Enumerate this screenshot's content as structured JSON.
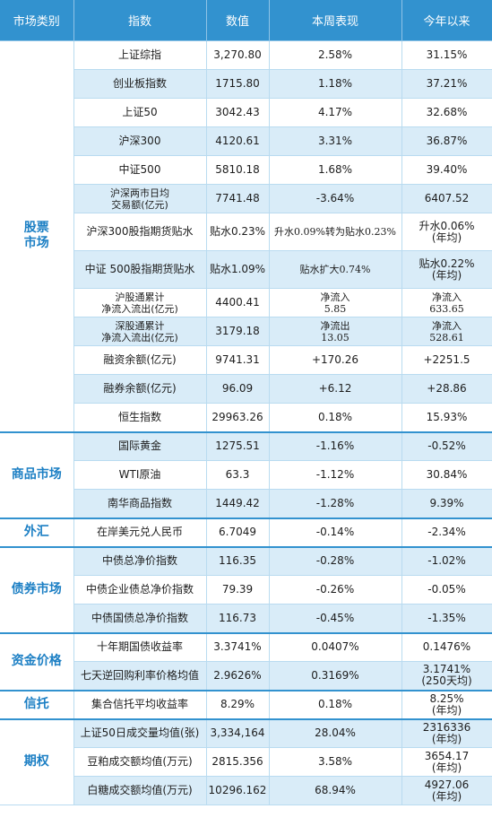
{
  "header": [
    "市场类别",
    "指数",
    "数值",
    "本周表现",
    "今年以来"
  ],
  "groups": [
    {
      "category": "股票\n市场",
      "rows": [
        {
          "name": "上证综指",
          "value": "3,270.80",
          "week": "2.58%",
          "ytd": "31.15%"
        },
        {
          "name": "创业板指数",
          "value": "1715.80",
          "week": "1.18%",
          "ytd": "37.21%"
        },
        {
          "name": "上证50",
          "value": "3042.43",
          "week": "4.17%",
          "ytd": "32.68%"
        },
        {
          "name": "沪深300",
          "value": "4120.61",
          "week": "3.31%",
          "ytd": "36.87%"
        },
        {
          "name": "中证500",
          "value": "5810.18",
          "week": "1.68%",
          "ytd": "39.40%"
        },
        {
          "name": "沪深两市日均\n交易额(亿元)",
          "value": "7741.48",
          "week": "-3.64%",
          "ytd": "6407.52"
        },
        {
          "name": "沪深300股指期货贴水",
          "value": "贴水0.23%",
          "week": "升水0.09%转为贴水0.23%",
          "ytd": "升水0.06%\n(年均)"
        },
        {
          "name": "中证 500股指期货贴水",
          "value": "贴水1.09%",
          "week": "贴水扩大0.74%",
          "ytd": "贴水0.22%\n(年均)"
        },
        {
          "name": "沪股通累计\n净流入流出(亿元)",
          "value": "4400.41",
          "week": "净流入\n5.85",
          "ytd": "净流入\n633.65"
        },
        {
          "name": "深股通累计\n净流入流出(亿元)",
          "value": "3179.18",
          "week": "净流出\n13.05",
          "ytd": "净流入\n528.61"
        },
        {
          "name": "融资余额(亿元)",
          "value": "9741.31",
          "week": "+170.26",
          "ytd": "+2251.5"
        },
        {
          "name": "融券余额(亿元)",
          "value": "96.09",
          "week": "+6.12",
          "ytd": "+28.86"
        },
        {
          "name": "恒生指数",
          "value": "29963.26",
          "week": "0.18%",
          "ytd": "15.93%"
        }
      ]
    },
    {
      "category": "商品市场",
      "rows": [
        {
          "name": "国际黄金",
          "value": "1275.51",
          "week": "-1.16%",
          "ytd": "-0.52%"
        },
        {
          "name": "WTI原油",
          "value": "63.3",
          "week": "-1.12%",
          "ytd": "30.84%"
        },
        {
          "name": "南华商品指数",
          "value": "1449.42",
          "week": "-1.28%",
          "ytd": "9.39%"
        }
      ]
    },
    {
      "category": "外汇",
      "rows": [
        {
          "name": "在岸美元兑人民币",
          "value": "6.7049",
          "week": "-0.14%",
          "ytd": "-2.34%"
        }
      ]
    },
    {
      "category": "债券市场",
      "rows": [
        {
          "name": "中债总净价指数",
          "value": "116.35",
          "week": "-0.28%",
          "ytd": "-1.02%"
        },
        {
          "name": "中债企业债总净价指数",
          "value": "79.39",
          "week": "-0.26%",
          "ytd": "-0.05%"
        },
        {
          "name": "中债国债总净价指数",
          "value": "116.73",
          "week": "-0.45%",
          "ytd": "-1.35%"
        }
      ]
    },
    {
      "category": "资金价格",
      "rows": [
        {
          "name": "十年期国债收益率",
          "value": "3.3741%",
          "week": "0.0407%",
          "ytd": "0.1476%"
        },
        {
          "name": "七天逆回购利率价格均值",
          "value": "2.9626%",
          "week": "0.3169%",
          "ytd": "3.1741%\n(250天均)"
        }
      ]
    },
    {
      "category": "信托",
      "rows": [
        {
          "name": "集合信托平均收益率",
          "value": "8.29%",
          "week": "0.18%",
          "ytd": "8.25%\n(年均)"
        }
      ]
    },
    {
      "category": "期权",
      "rows": [
        {
          "name": "上证50日成交量均值(张)",
          "value": "3,334,164",
          "week": "28.04%",
          "ytd": "2316336\n(年均)"
        },
        {
          "name": "豆粕成交额均值(万元)",
          "value": "2815.356",
          "week": "3.58%",
          "ytd": "3654.17\n(年均)"
        },
        {
          "name": "白糖成交额均值(万元)",
          "value": "10296.162",
          "week": "68.94%",
          "ytd": "4927.06\n(年均)"
        }
      ]
    }
  ]
}
